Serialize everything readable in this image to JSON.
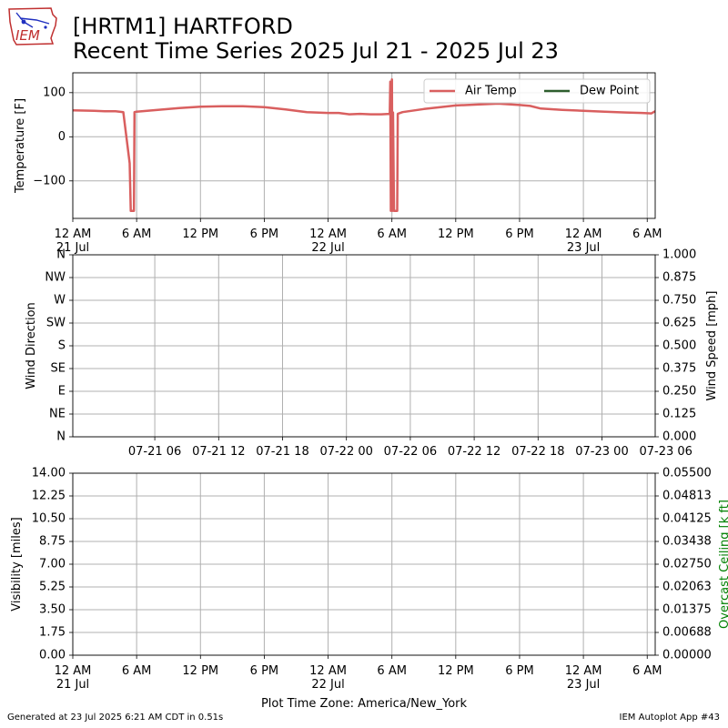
{
  "header": {
    "logo_text": "IEM",
    "title_line1": "[HRTM1] HARTFORD",
    "title_line2": "Recent Time Series 2025 Jul 21 - 2025 Jul 23"
  },
  "footer": {
    "generated": "Generated at 23 Jul 2025 6:21 AM CDT in 0.51s",
    "app": "IEM Autoplot App #43"
  },
  "colors": {
    "air_temp": "#d95f5f",
    "dew_point": "#2e5e2e",
    "ceiling_label": "#008000",
    "grid": "#b0b0b0"
  },
  "chart_data": [
    {
      "type": "line",
      "ylabel": "Temperature [F]",
      "ylim": [
        -185,
        145
      ],
      "yticks": [
        100,
        0,
        -100
      ],
      "ytick_labels": [
        "100",
        "0",
        "−100"
      ],
      "x_axis": "local time (America/New_York), hours from 2025-07-21 00:00",
      "xlim": [
        0,
        54.75
      ],
      "xticks": [
        0,
        6,
        12,
        18,
        24,
        30,
        36,
        42,
        48,
        54
      ],
      "xtick_labels": [
        "12 AM",
        "6 AM",
        "12 PM",
        "6 PM",
        "12 AM",
        "6 AM",
        "12 PM",
        "6 PM",
        "12 AM",
        "6 AM"
      ],
      "xtick_date_labels": [
        {
          "at": 0,
          "label": "21 Jul"
        },
        {
          "at": 24,
          "label": "22 Jul"
        },
        {
          "at": 48,
          "label": "23 Jul"
        }
      ],
      "grid": true,
      "legend": {
        "position": "top-right",
        "columns": 2
      },
      "series": [
        {
          "name": "Air Temp",
          "color": "#d95f5f",
          "x": [
            0,
            2,
            3,
            4,
            4.75,
            5.35,
            5.45,
            5.6,
            5.75,
            5.8,
            6,
            8,
            10,
            12,
            14,
            16,
            18,
            20,
            22,
            24,
            25,
            26,
            27,
            28,
            29,
            29.8,
            29.85,
            29.9,
            30.0,
            30.05,
            30.1,
            30.2,
            30.35,
            30.5,
            30.55,
            31,
            33,
            36,
            38,
            40,
            42,
            43,
            44,
            46,
            48,
            50,
            52,
            53.5,
            54.4,
            54.75
          ],
          "values": [
            60,
            59,
            58,
            58,
            56,
            -60,
            -168,
            -168,
            -168,
            56,
            57,
            61,
            65,
            68,
            69,
            69,
            67,
            62,
            56,
            54,
            54,
            51,
            52,
            51,
            51,
            52,
            125,
            -168,
            130,
            -168,
            55,
            -168,
            -168,
            -168,
            52,
            56,
            63,
            71,
            73,
            75,
            72,
            70,
            64,
            61,
            59,
            57,
            55,
            54,
            53,
            58
          ]
        },
        {
          "name": "Dew Point",
          "color": "#2e5e2e",
          "x": [],
          "values": []
        }
      ]
    },
    {
      "type": "scatter",
      "ylabel": "Wind Direction",
      "y2label": "Wind Speed [mph]",
      "ytick_labels": [
        "N",
        "NE",
        "E",
        "SE",
        "S",
        "SW",
        "W",
        "NW",
        "N"
      ],
      "ylim": [
        0,
        360
      ],
      "y2lim": [
        0,
        1
      ],
      "y2tick_labels": [
        "0.000",
        "0.125",
        "0.250",
        "0.375",
        "0.500",
        "0.625",
        "0.750",
        "0.875",
        "1.000"
      ],
      "xlim": [
        -1.7,
        53.0
      ],
      "xticks": [
        6,
        12,
        18,
        24,
        30,
        36,
        42,
        48,
        54
      ],
      "xtick_labels": [
        "07-21 06",
        "07-21 12",
        "07-21 18",
        "07-22 00",
        "07-22 06",
        "07-22 12",
        "07-22 18",
        "07-23 00",
        "07-23 06"
      ],
      "grid": true,
      "series": []
    },
    {
      "type": "line",
      "ylabel": "Visibility [miles]",
      "y2label": "Overcast Ceiling [k ft]",
      "ylim": [
        0,
        14
      ],
      "ytick_labels": [
        "0.00",
        "1.75",
        "3.50",
        "5.25",
        "7.00",
        "8.75",
        "10.50",
        "12.25",
        "14.00"
      ],
      "y2lim": [
        0,
        0.055
      ],
      "y2tick_labels": [
        "0.00000",
        "0.00688",
        "0.01375",
        "0.02063",
        "0.02750",
        "0.03438",
        "0.04125",
        "0.04813",
        "0.05500"
      ],
      "xlim": [
        0,
        54.75
      ],
      "xticks": [
        0,
        6,
        12,
        18,
        24,
        30,
        36,
        42,
        48,
        54
      ],
      "xtick_labels": [
        "12 AM",
        "6 AM",
        "12 PM",
        "6 PM",
        "12 AM",
        "6 AM",
        "12 PM",
        "6 PM",
        "12 AM",
        "6 AM"
      ],
      "xtick_date_labels": [
        {
          "at": 0,
          "label": "21 Jul"
        },
        {
          "at": 24,
          "label": "22 Jul"
        },
        {
          "at": 48,
          "label": "23 Jul"
        }
      ],
      "xlabel": "Plot Time Zone: America/New_York",
      "grid": true,
      "series": []
    }
  ]
}
